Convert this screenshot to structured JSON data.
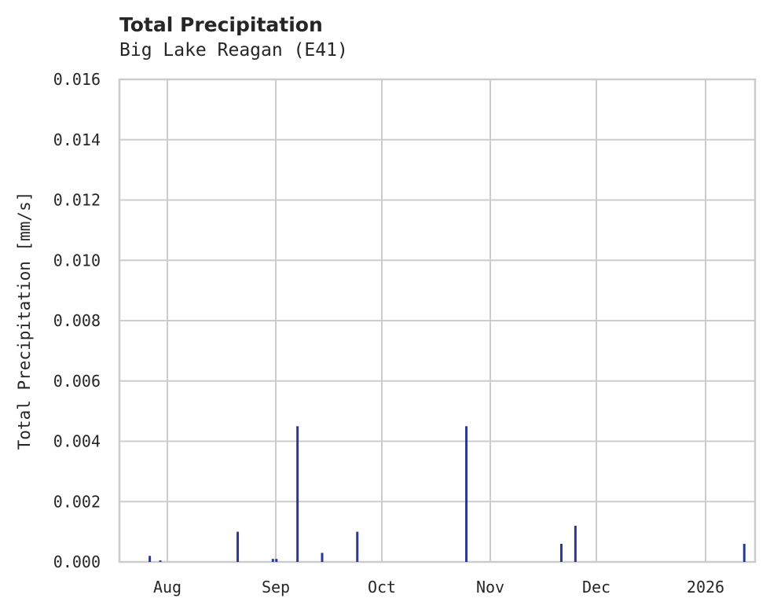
{
  "chart_data": {
    "type": "bar",
    "title": "Total Precipitation",
    "subtitle": "Big Lake Reagan (E41)",
    "xlabel": "",
    "ylabel": "Total Precipitation [mm/s]",
    "ylim": [
      0,
      0.016
    ],
    "yticks": [
      "0.000",
      "0.002",
      "0.004",
      "0.006",
      "0.008",
      "0.010",
      "0.012",
      "0.014",
      "0.016"
    ],
    "xticks": [
      "Aug",
      "Sep",
      "Oct",
      "Nov",
      "Dec",
      "2026"
    ],
    "grid": true,
    "legend": null,
    "series_color": "#2b3990",
    "series": [
      {
        "name": "Total Precipitation",
        "x": [
          "2025-07-27",
          "2025-07-30",
          "2025-08-21",
          "2025-08-31",
          "2025-09-01",
          "2025-09-07",
          "2025-09-14",
          "2025-09-24",
          "2025-10-25",
          "2025-11-21",
          "2025-11-25",
          "2026-01-12"
        ],
        "values": [
          0.0002,
          5e-05,
          0.001,
          0.0001,
          0.0001,
          0.0045,
          0.0003,
          0.001,
          0.0045,
          0.0006,
          0.0012,
          0.0006
        ]
      }
    ]
  }
}
